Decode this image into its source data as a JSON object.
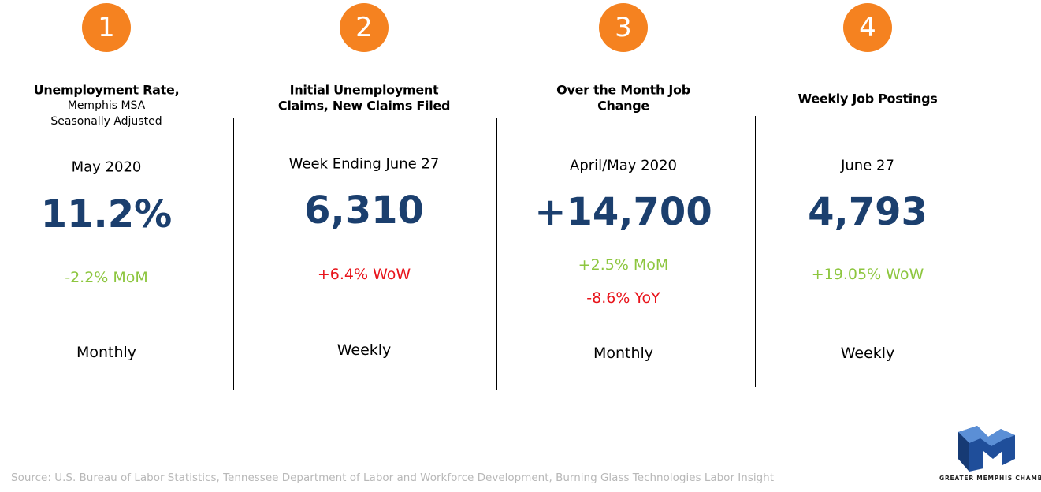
{
  "panels": [
    {
      "number": "1",
      "title": [
        "Unemployment Rate,"
      ],
      "subtitle": [
        "Memphis MSA",
        "Seasonally Adjusted"
      ],
      "period": "May 2020",
      "value": "11.2%",
      "changes": [
        {
          "text": "-2.2% MoM",
          "color": "#8dc63f"
        }
      ],
      "frequency": "Monthly"
    },
    {
      "number": "2",
      "title": [
        "Initial Unemployment",
        "Claims, New Claims Filed"
      ],
      "subtitle": [],
      "period": "Week Ending June 27",
      "value": "6,310",
      "changes": [
        {
          "text": "+6.4% WoW",
          "color": "#e8141b"
        }
      ],
      "frequency": "Weekly"
    },
    {
      "number": "3",
      "title": [
        "Over the Month Job",
        "Change"
      ],
      "subtitle": [],
      "period": "April/May 2020",
      "value": "+14,700",
      "changes": [
        {
          "text": "+2.5% MoM",
          "color": "#8dc63f"
        },
        {
          "text": "-8.6% YoY",
          "color": "#e8141b"
        }
      ],
      "frequency": "Monthly"
    },
    {
      "number": "4",
      "title": [
        "Weekly Job Postings"
      ],
      "subtitle": [],
      "period": "June 27",
      "value": "4,793",
      "changes": [
        {
          "text": "+19.05% WoW",
          "color": "#8dc63f"
        }
      ],
      "frequency": "Weekly"
    }
  ],
  "source": "Source: U.S. Bureau of Labor Statistics, Tennessee Department of Labor and Workforce Development, Burning Glass Technologies Labor Insight",
  "logo": "GREATER MEMPHIS CHAMBER"
}
